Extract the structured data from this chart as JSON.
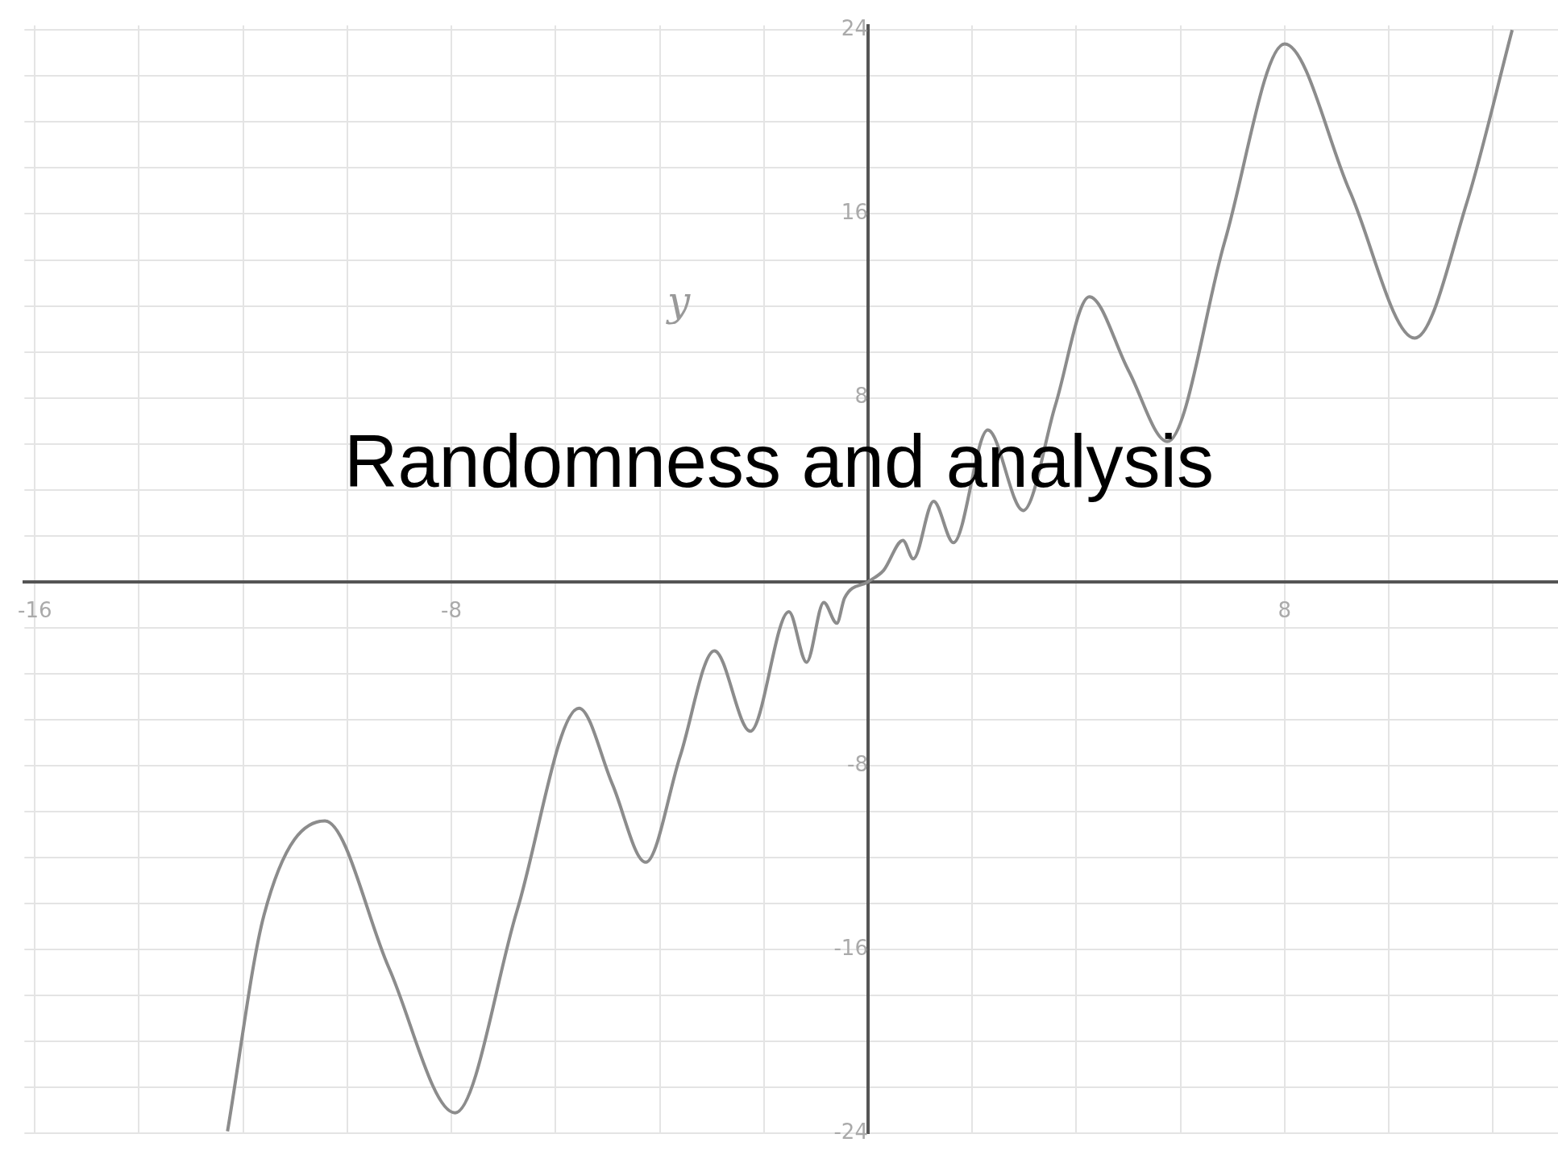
{
  "chart_data": {
    "type": "line",
    "title": "Randomness and analysis",
    "ylabel": "y",
    "x": [
      -12.3,
      -11.6,
      -10.43,
      -9.2,
      -7.93,
      -6.74,
      -5.55,
      -4.91,
      -4.27,
      -3.61,
      -2.95,
      -2.26,
      -1.52,
      -1.18,
      -0.85,
      -0.6,
      -0.45,
      0,
      0.3,
      0.67,
      0.87,
      1.26,
      1.64,
      2.3,
      2.98,
      3.6,
      4.25,
      5.0,
      5.75,
      6.85,
      8.0,
      9.25,
      10.5,
      11.5,
      12.37
    ],
    "values": [
      -23.9,
      -14.5,
      -10.4,
      -16.8,
      -23.1,
      -14.3,
      -5.5,
      -8.8,
      -12.2,
      -7.6,
      -3.0,
      -6.5,
      -1.3,
      -3.5,
      -0.9,
      -1.8,
      -0.7,
      0,
      0.5,
      1.8,
      1.0,
      3.5,
      1.7,
      6.6,
      3.1,
      7.7,
      12.4,
      9.2,
      6.1,
      14.8,
      23.4,
      17.0,
      10.6,
      16.5,
      24.0
    ],
    "color": "#8c8c8c",
    "xlim": [
      -16.2,
      13.25
    ],
    "ylim": [
      -24,
      24.2
    ],
    "xticks": [
      -16,
      {
        "value": -14,
        "label": null
      },
      {
        "value": -12,
        "label": null
      },
      {
        "value": -10,
        "label": null
      },
      -8,
      {
        "value": -6,
        "label": null
      },
      {
        "value": -4,
        "label": null
      },
      {
        "value": -2,
        "label": null
      },
      {
        "value": 0,
        "label": null
      },
      {
        "value": 2,
        "label": null
      },
      {
        "value": 4,
        "label": null
      },
      {
        "value": 6,
        "label": null
      },
      8,
      {
        "value": 10,
        "label": null
      },
      {
        "value": 12,
        "label": null
      }
    ],
    "yticks": [
      -24,
      {
        "value": -22,
        "label": null
      },
      {
        "value": -20,
        "label": null
      },
      {
        "value": -18,
        "label": null
      },
      -16,
      {
        "value": -14,
        "label": null
      },
      {
        "value": -12,
        "label": null
      },
      {
        "value": -10,
        "label": null
      },
      -8,
      {
        "value": -6,
        "label": null
      },
      {
        "value": -4,
        "label": null
      },
      {
        "value": -2,
        "label": null
      },
      {
        "value": 0,
        "label": null
      },
      {
        "value": 2,
        "label": null
      },
      {
        "value": 4,
        "label": null
      },
      {
        "value": 6,
        "label": null
      },
      8,
      {
        "value": 10,
        "label": null
      },
      {
        "value": 12,
        "label": null
      },
      {
        "value": 14,
        "label": null
      },
      16,
      {
        "value": 18,
        "label": null
      },
      {
        "value": 20,
        "label": null
      },
      {
        "value": 22,
        "label": null
      },
      24
    ],
    "grid": true
  }
}
